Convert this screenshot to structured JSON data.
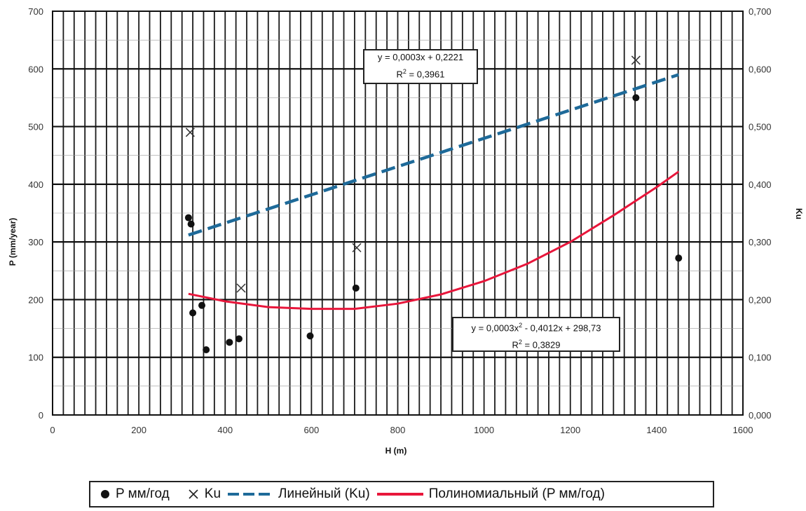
{
  "chart_data": {
    "type": "scatter",
    "xlabel": "H (m)",
    "ylabel_left": "P (mm/year)",
    "ylabel_right": "Ku",
    "xlim": [
      0,
      1600
    ],
    "ylim_left": [
      0,
      700
    ],
    "ylim_right": [
      0.0,
      0.7
    ],
    "x_ticks": [
      "0",
      "200",
      "400",
      "600",
      "800",
      "1000",
      "1200",
      "1400",
      "1600"
    ],
    "y_ticks_left": [
      "0",
      "100",
      "200",
      "300",
      "400",
      "500",
      "600",
      "700"
    ],
    "y_ticks_right": [
      "0,000",
      "0,100",
      "0,200",
      "0,300",
      "0,400",
      "0,500",
      "0,600",
      "0,700"
    ],
    "grid": true,
    "legend_position": "bottom",
    "series": [
      {
        "name": "P мм/год",
        "marker": "circle",
        "axis": "left",
        "color": "#111111",
        "points": [
          [
            315,
            342
          ],
          [
            321,
            331
          ],
          [
            325,
            177
          ],
          [
            346,
            190
          ],
          [
            356,
            113
          ],
          [
            410,
            126
          ],
          [
            432,
            132
          ],
          [
            597,
            137
          ],
          [
            703,
            220
          ],
          [
            1352,
            550
          ],
          [
            1451,
            272
          ]
        ]
      },
      {
        "name": "Ku",
        "marker": "x",
        "axis": "right",
        "color": "#333333",
        "points": [
          [
            319,
            0.49
          ],
          [
            437,
            0.22
          ],
          [
            705,
            0.29
          ],
          [
            1352,
            0.615
          ]
        ]
      },
      {
        "name": "Линейный (Ku)",
        "type": "trend_linear",
        "axis": "right",
        "color": "#1e6a99",
        "style": "dashed",
        "x_range": [
          315,
          1451
        ],
        "points": [
          [
            315,
            0.312
          ],
          [
            1451,
            0.59
          ]
        ]
      },
      {
        "name": "Полиномиальный (P мм/год)",
        "type": "trend_polynomial",
        "axis": "left",
        "color": "#e8163b",
        "style": "solid",
        "x_range": [
          315,
          1451
        ],
        "points": [
          [
            315,
            210
          ],
          [
            400,
            197
          ],
          [
            500,
            187
          ],
          [
            600,
            184
          ],
          [
            700,
            184
          ],
          [
            800,
            193
          ],
          [
            900,
            209
          ],
          [
            1000,
            232
          ],
          [
            1100,
            262
          ],
          [
            1200,
            300
          ],
          [
            1300,
            346
          ],
          [
            1400,
            395
          ],
          [
            1451,
            422
          ]
        ]
      }
    ],
    "annotations": [
      {
        "id": "eq-linear",
        "line1": "y = 0,0003x + 0,2221",
        "r2_prefix": "R",
        "r2_sup": "2",
        "r2_value": " = 0,3961"
      },
      {
        "id": "eq-poly",
        "line1_a": "y = 0,0003x",
        "line1_sup": "2",
        "line1_b": " - 0,4012x + 298,73",
        "r2_prefix": "R",
        "r2_sup": "2",
        "r2_value": " = 0,3829"
      }
    ]
  },
  "legend": {
    "p_label": "P мм/год",
    "ku_label": "Ku",
    "linear_label": "Линейный (Ku)",
    "poly_label": "Полиномиальный (P мм/год)"
  }
}
